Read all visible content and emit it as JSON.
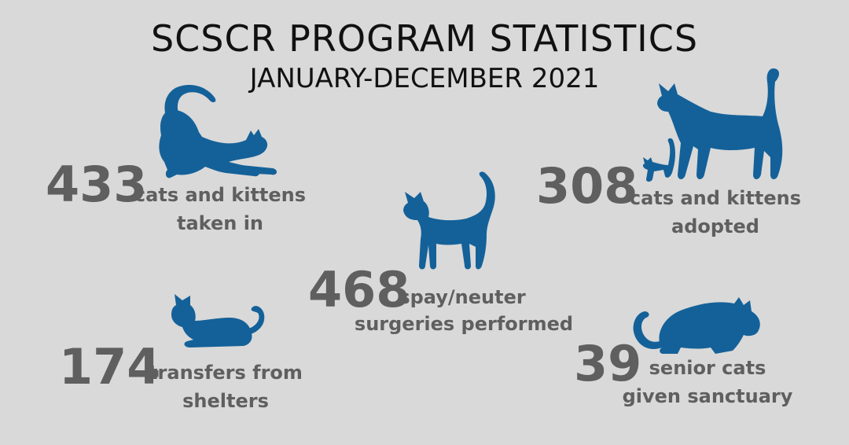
{
  "header": {
    "title": "SCSCR PROGRAM STATISTICS",
    "subtitle": "JANUARY-DECEMBER 2021"
  },
  "stats": [
    {
      "number": "433",
      "line1": "cats and kittens",
      "line2": "taken in"
    },
    {
      "number": "308",
      "line1": "cats and kittens",
      "line2": "adopted"
    },
    {
      "number": "468",
      "line1": "spay/neuter",
      "line2": "surgeries performed"
    },
    {
      "number": "174",
      "line1": "transfers from",
      "line2": "shelters"
    },
    {
      "number": "39",
      "line1": "senior cats",
      "line2": "given sanctuary"
    }
  ],
  "colors": {
    "background": "#d9d9d9",
    "cat_silhouette": "#146199",
    "stat_text": "#5f5f5f",
    "title_text": "#111111"
  },
  "icons": [
    "stretching-cat-icon",
    "cat-and-kitten-icon",
    "standing-cat-icon",
    "lying-cat-icon",
    "crouching-cat-icon"
  ]
}
